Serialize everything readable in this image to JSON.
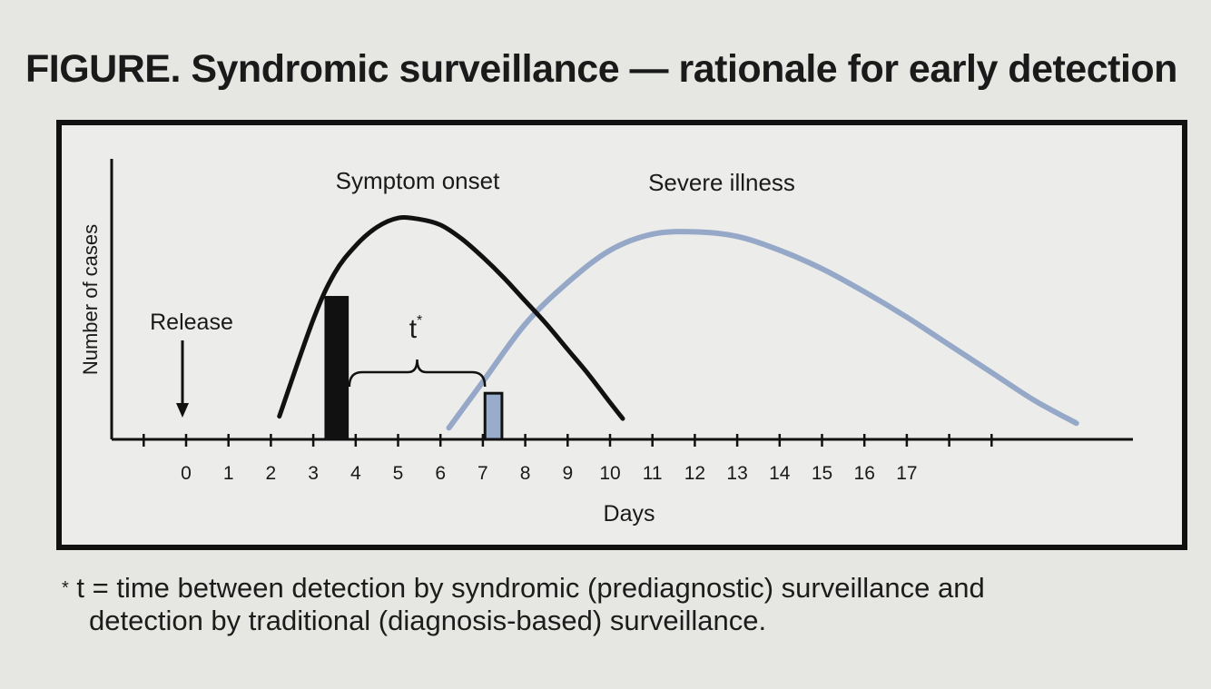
{
  "title": "FIGURE. Syndromic surveillance — rationale for early detection",
  "chart_data": {
    "type": "line",
    "ylabel": "Number of cases",
    "xlabel": "Days",
    "xticks": [
      "0",
      "1",
      "2",
      "3",
      "4",
      "5",
      "6",
      "7",
      "8",
      "9",
      "10",
      "11",
      "12",
      "13",
      "14",
      "15",
      "16",
      "17"
    ],
    "series": [
      {
        "name": "Symptom onset",
        "color": "#111111",
        "x": [
          2.2,
          3.0,
          3.5,
          4.0,
          4.5,
          5.0,
          5.5,
          6.0,
          6.5,
          7.0,
          7.5,
          8.0,
          8.5,
          9.0,
          9.5,
          10.0,
          10.3
        ],
        "y": [
          0.1,
          0.52,
          0.72,
          0.84,
          0.92,
          0.96,
          0.955,
          0.93,
          0.87,
          0.79,
          0.7,
          0.6,
          0.5,
          0.39,
          0.28,
          0.16,
          0.09
        ]
      },
      {
        "name": "Severe illness",
        "color": "#95a8c8",
        "x": [
          6.2,
          7.0,
          8.0,
          9.0,
          10.0,
          11.0,
          12.0,
          13.0,
          14.0,
          15.0,
          16.0,
          17.0,
          18.0,
          19.0,
          20.0,
          21.0
        ],
        "y": [
          0.05,
          0.25,
          0.5,
          0.68,
          0.82,
          0.89,
          0.9,
          0.88,
          0.82,
          0.74,
          0.64,
          0.53,
          0.41,
          0.29,
          0.17,
          0.07
        ]
      }
    ],
    "bars": [
      {
        "x": 3.55,
        "width": 0.55,
        "y": 0.62,
        "color": "#111111"
      },
      {
        "x": 7.25,
        "width": 0.4,
        "y": 0.2,
        "color": "#9aaccc"
      }
    ],
    "annotations": {
      "release": "Release",
      "release_day": 0,
      "t_label": "t",
      "t_sup": "*",
      "t_start": 3.85,
      "t_end": 7.05
    }
  },
  "footnote": {
    "star": "*",
    "line1": "t = time between detection by syndromic (prediagnostic) surveillance and",
    "line2": "detection by traditional (diagnosis-based) surveillance."
  }
}
